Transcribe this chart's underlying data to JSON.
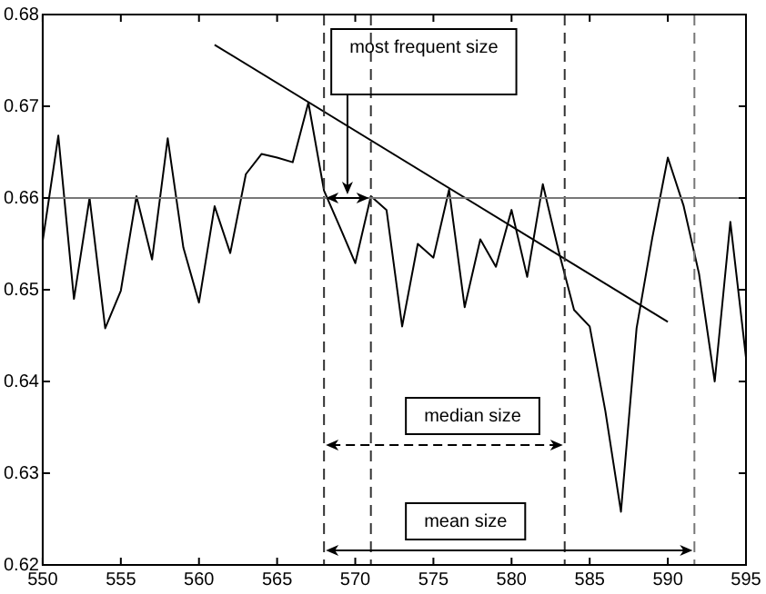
{
  "chart_data": {
    "type": "line",
    "x": [
      550,
      551,
      552,
      553,
      554,
      555,
      556,
      557,
      558,
      559,
      560,
      561,
      562,
      563,
      564,
      565,
      566,
      567,
      568,
      569,
      570,
      571,
      572,
      573,
      574,
      575,
      576,
      577,
      578,
      579,
      580,
      581,
      582,
      583,
      584,
      585,
      586,
      587,
      588,
      589,
      590,
      591,
      592,
      593,
      594,
      595
    ],
    "series": [
      {
        "color": "#000000",
        "values": [
          0.6553,
          0.6668,
          0.649,
          0.66,
          0.6458,
          0.6499,
          0.6602,
          0.6533,
          0.6665,
          0.6546,
          0.6486,
          0.6591,
          0.654,
          0.6626,
          0.6648,
          0.6644,
          0.6639,
          0.6704,
          0.6608,
          0.6569,
          0.6529,
          0.6602,
          0.6587,
          0.646,
          0.655,
          0.6535,
          0.6609,
          0.6481,
          0.6555,
          0.6525,
          0.6587,
          0.6514,
          0.6615,
          0.6543,
          0.6478,
          0.646,
          0.6368,
          0.6258,
          0.6458,
          0.6556,
          0.6644,
          0.6592,
          0.6517,
          0.64,
          0.6574,
          0.6426
        ]
      },
      {
        "type": "line",
        "color": "#000000",
        "x": [
          561,
          590
        ],
        "values": [
          0.6767,
          0.6465
        ]
      }
    ],
    "xlim": [
      550,
      595
    ],
    "xticks": [
      550,
      555,
      560,
      565,
      570,
      575,
      580,
      585,
      590,
      595
    ],
    "ylim": [
      0.62,
      0.68
    ],
    "yticks": [
      0.62,
      0.63,
      0.64,
      0.65,
      0.66,
      0.67,
      0.68
    ],
    "ref_lines": [
      {
        "axis": "x",
        "value": 568,
        "color": "#333333",
        "line_style": "dashed"
      },
      {
        "axis": "x",
        "value": 571,
        "color": "#333333",
        "line_style": "dashed"
      },
      {
        "axis": "x",
        "value": 583.4,
        "color": "#333333",
        "line_style": "dashed"
      },
      {
        "axis": "x",
        "value": 591.7,
        "color": "#777777",
        "line_style": "dashed"
      },
      {
        "axis": "y",
        "value": 0.66,
        "color": "#777777",
        "line_style": "solid"
      }
    ],
    "annotations": [
      "most frequent size",
      "median size",
      "mean size"
    ],
    "grid": false,
    "legend": false,
    "marker": "none",
    "line_style": "solid"
  }
}
